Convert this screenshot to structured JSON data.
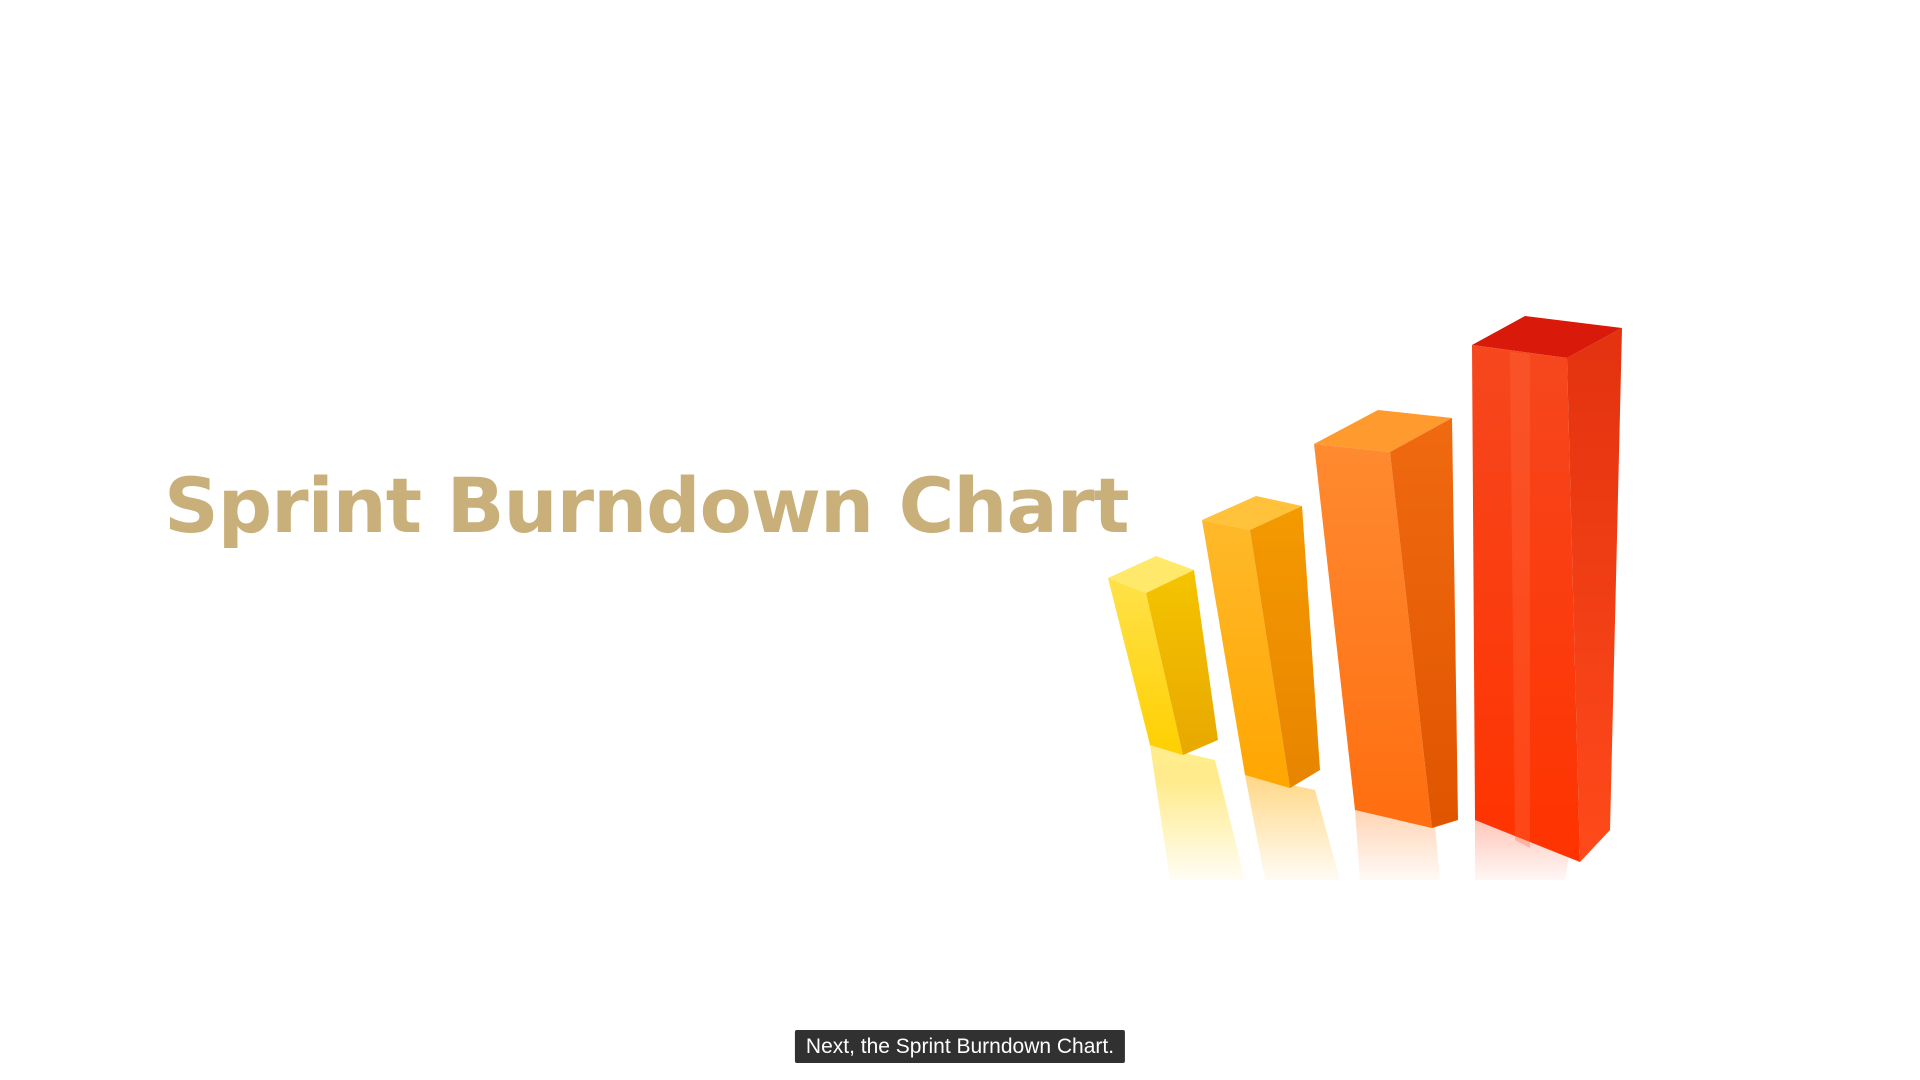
{
  "slide": {
    "title": "Sprint Burndown Chart"
  },
  "caption": {
    "text": "Next, the Sprint Burndown Chart."
  },
  "graphic": {
    "icon": "ascending-3d-bars-illustration",
    "bar_colors": [
      "#ffd000",
      "#ffaa00",
      "#ff7a1a",
      "#f23a12"
    ]
  }
}
